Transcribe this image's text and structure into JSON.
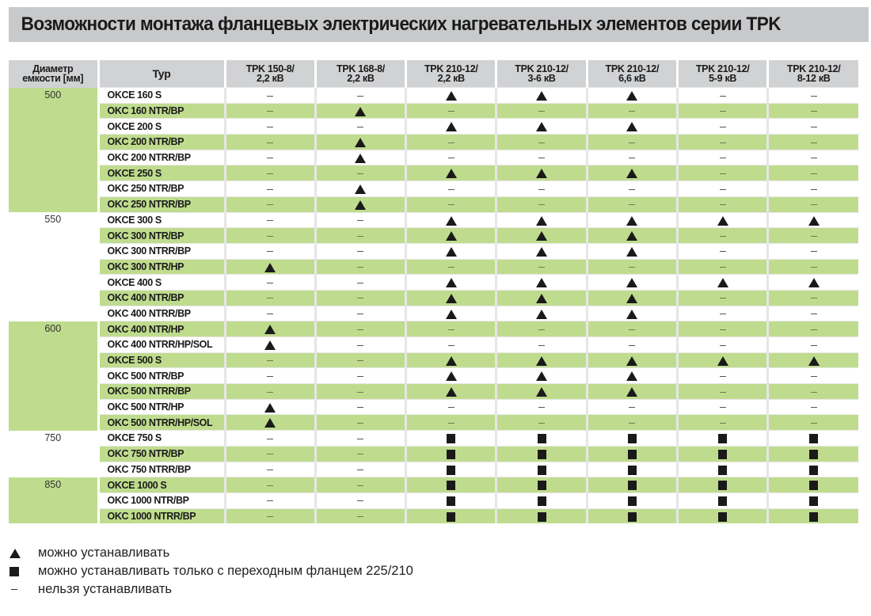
{
  "title": "Возможности монтажа фланцевых электрических нагревательных элементов серии TPK",
  "colors": {
    "title_bg": "#c8c9cb",
    "header_bg": "#d1d2d4",
    "row_green": "#bfdc8e",
    "row_white": "#ffffff",
    "mark": "#1a1a1a"
  },
  "headers": {
    "diameter": [
      "Диаметр",
      "емкости [мм]"
    ],
    "typ": "Typ",
    "tpk": [
      [
        "TPK 150-8/",
        "2,2 кВ"
      ],
      [
        "TPK 168-8/",
        "2,2 кВ"
      ],
      [
        "TPK 210-12/",
        "2,2 кВ"
      ],
      [
        "TPK 210-12/",
        "3-6 кВ"
      ],
      [
        "TPK 210-12/",
        "6,6 кВ"
      ],
      [
        "TPK 210-12/",
        "5-9 кВ"
      ],
      [
        "TPK 210-12/",
        "8-12 кВ"
      ]
    ]
  },
  "groups": [
    {
      "diameter": "500",
      "color": "green",
      "rows": [
        {
          "typ": "OKCE 160 S",
          "v": [
            "-",
            "-",
            "T",
            "T",
            "T",
            "-",
            "-"
          ]
        },
        {
          "typ": "OKC 160 NTR/BP",
          "v": [
            "-",
            "T",
            "-",
            "-",
            "-",
            "-",
            "-"
          ]
        },
        {
          "typ": "OKCE 200 S",
          "v": [
            "-",
            "-",
            "T",
            "T",
            "T",
            "-",
            "-"
          ]
        },
        {
          "typ": "OKC 200 NTR/BP",
          "v": [
            "-",
            "T",
            "-",
            "-",
            "-",
            "-",
            "-"
          ]
        },
        {
          "typ": "OKC 200 NTRR/BP",
          "v": [
            "-",
            "T",
            "-",
            "-",
            "-",
            "-",
            "-"
          ]
        },
        {
          "typ": "OKCE 250 S",
          "v": [
            "-",
            "-",
            "T",
            "T",
            "T",
            "-",
            "-"
          ]
        },
        {
          "typ": "OKC 250 NTR/BP",
          "v": [
            "-",
            "T",
            "-",
            "-",
            "-",
            "-",
            "-"
          ]
        },
        {
          "typ": "OKC 250 NTRR/BP",
          "v": [
            "-",
            "T",
            "-",
            "-",
            "-",
            "-",
            "-"
          ]
        }
      ]
    },
    {
      "diameter": "550",
      "color": "white",
      "rows": [
        {
          "typ": "OKCE 300 S",
          "v": [
            "-",
            "-",
            "T",
            "T",
            "T",
            "T",
            "T"
          ]
        },
        {
          "typ": "OKC 300 NTR/BP",
          "v": [
            "-",
            "-",
            "T",
            "T",
            "T",
            "-",
            "-"
          ]
        },
        {
          "typ": "OKC 300 NTRR/BP",
          "v": [
            "-",
            "-",
            "T",
            "T",
            "T",
            "-",
            "-"
          ]
        },
        {
          "typ": "OKC 300 NTR/HP",
          "v": [
            "T",
            "-",
            "-",
            "-",
            "-",
            "-",
            "-"
          ]
        },
        {
          "typ": "OKCE 400 S",
          "v": [
            "-",
            "-",
            "T",
            "T",
            "T",
            "T",
            "T"
          ]
        },
        {
          "typ": "OKC 400 NTR/BP",
          "v": [
            "-",
            "-",
            "T",
            "T",
            "T",
            "-",
            "-"
          ]
        },
        {
          "typ": "OKC 400 NTRR/BP",
          "v": [
            "-",
            "-",
            "T",
            "T",
            "T",
            "-",
            "-"
          ]
        }
      ]
    },
    {
      "diameter": "600",
      "color": "green",
      "rows": [
        {
          "typ": "OKC 400 NTR/HP",
          "v": [
            "T",
            "-",
            "-",
            "-",
            "-",
            "-",
            "-"
          ]
        },
        {
          "typ": "OKC 400 NTRR/HP/SOL",
          "v": [
            "T",
            "-",
            "-",
            "-",
            "-",
            "-",
            "-"
          ]
        },
        {
          "typ": "OKCE 500 S",
          "v": [
            "-",
            "-",
            "T",
            "T",
            "T",
            "T",
            "T"
          ]
        },
        {
          "typ": "OKC 500 NTR/BP",
          "v": [
            "-",
            "-",
            "T",
            "T",
            "T",
            "-",
            "-"
          ]
        },
        {
          "typ": "OKC 500 NTRR/BP",
          "v": [
            "-",
            "-",
            "T",
            "T",
            "T",
            "-",
            "-"
          ]
        },
        {
          "typ": "OKC 500 NTR/HP",
          "v": [
            "T",
            "-",
            "-",
            "-",
            "-",
            "-",
            "-"
          ]
        },
        {
          "typ": "OKC 500 NTRR/HP/SOL",
          "v": [
            "T",
            "-",
            "-",
            "-",
            "-",
            "-",
            "-"
          ]
        }
      ]
    },
    {
      "diameter": "750",
      "color": "white",
      "rows": [
        {
          "typ": "OKCE 750 S",
          "v": [
            "-",
            "-",
            "S",
            "S",
            "S",
            "S",
            "S"
          ]
        },
        {
          "typ": "OKC 750 NTR/BP",
          "v": [
            "-",
            "-",
            "S",
            "S",
            "S",
            "S",
            "S"
          ]
        },
        {
          "typ": "OKC 750 NTRR/BP",
          "v": [
            "-",
            "-",
            "S",
            "S",
            "S",
            "S",
            "S"
          ]
        }
      ]
    },
    {
      "diameter": "850",
      "color": "green",
      "rows": [
        {
          "typ": "OKCE 1000 S",
          "v": [
            "-",
            "-",
            "S",
            "S",
            "S",
            "S",
            "S"
          ]
        },
        {
          "typ": "OKC 1000 NTR/BP",
          "v": [
            "-",
            "-",
            "S",
            "S",
            "S",
            "S",
            "S"
          ]
        },
        {
          "typ": "OKC 1000 NTRR/BP",
          "v": [
            "-",
            "-",
            "S",
            "S",
            "S",
            "S",
            "S"
          ]
        }
      ]
    }
  ],
  "legend": [
    {
      "symbol": "triangle-icon",
      "text": "можно устанавливать"
    },
    {
      "symbol": "square-icon",
      "text": "можно устанавливать только с переходным фланцем 225/210"
    },
    {
      "symbol": "dash-icon",
      "text": "нельзя устанавливать"
    }
  ]
}
